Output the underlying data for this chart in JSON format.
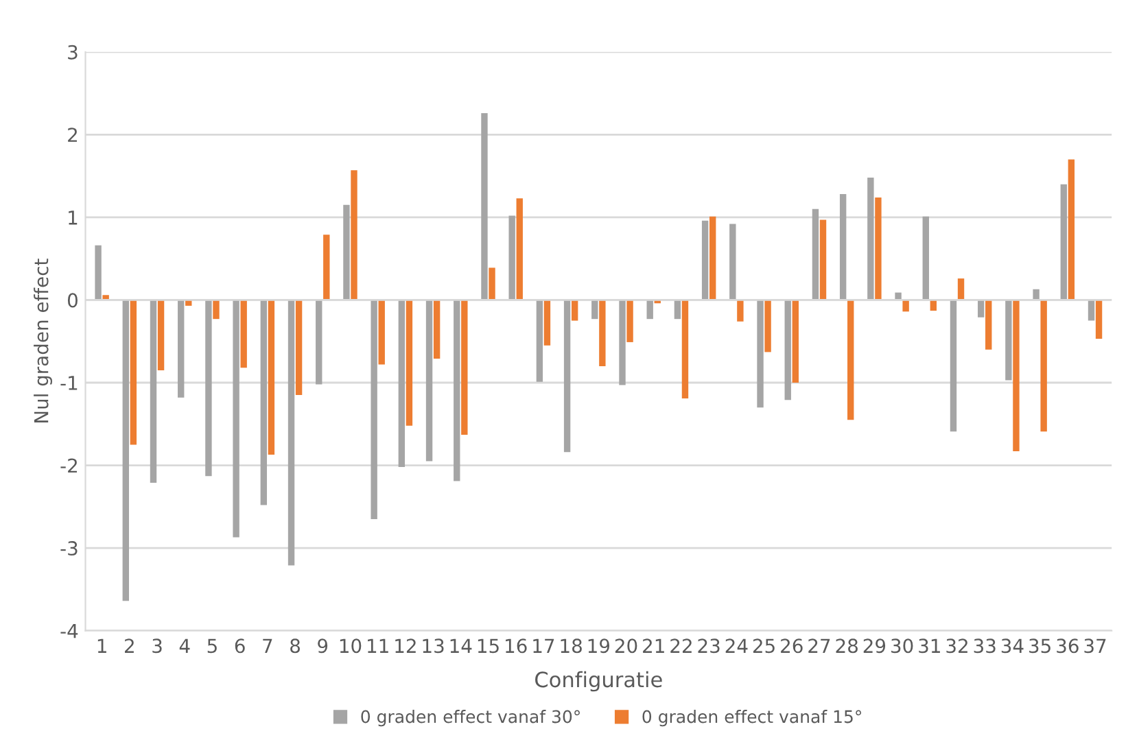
{
  "chart_data": {
    "type": "bar",
    "xlabel": "Configuratie",
    "ylabel": "Nul graden effect",
    "categories": [
      "1",
      "2",
      "3",
      "4",
      "5",
      "6",
      "7",
      "8",
      "9",
      "10",
      "11",
      "12",
      "13",
      "14",
      "15",
      "16",
      "17",
      "18",
      "19",
      "20",
      "21",
      "22",
      "23",
      "24",
      "25",
      "26",
      "27",
      "28",
      "29",
      "30",
      "31",
      "32",
      "33",
      "34",
      "35",
      "36",
      "37"
    ],
    "series": [
      {
        "name": "0 graden effect vanaf 30°",
        "color": "#a5a5a5",
        "values": [
          0.66,
          -3.64,
          -2.21,
          -1.18,
          -2.13,
          -2.87,
          -2.48,
          -3.21,
          -1.02,
          1.15,
          -2.65,
          -2.02,
          -1.95,
          -2.19,
          2.26,
          1.02,
          -0.99,
          -1.84,
          -0.23,
          -1.03,
          -0.23,
          -0.23,
          0.96,
          0.92,
          -1.3,
          -1.21,
          1.1,
          1.28,
          1.48,
          0.09,
          1.01,
          -1.59,
          -0.21,
          -0.97,
          0.13,
          1.4,
          -0.25
        ]
      },
      {
        "name": "0 graden effect vanaf 15°",
        "color": "#ed7d31",
        "values": [
          0.06,
          -1.75,
          -0.85,
          -0.07,
          -0.23,
          -0.82,
          -1.87,
          -1.15,
          0.79,
          1.57,
          -0.78,
          -1.52,
          -0.71,
          -1.63,
          0.39,
          1.23,
          -0.55,
          -0.25,
          -0.8,
          -0.51,
          -0.04,
          -1.19,
          1.01,
          -0.26,
          -0.63,
          -1.0,
          0.97,
          -1.45,
          1.24,
          -0.14,
          -0.13,
          0.26,
          -0.6,
          -1.83,
          -1.59,
          1.7,
          -0.47
        ]
      }
    ],
    "ylim": [
      -4,
      3
    ],
    "yticks": [
      -4,
      -3,
      -2,
      -1,
      0,
      1,
      2,
      3
    ],
    "grid": "y",
    "legend": "bottom"
  }
}
